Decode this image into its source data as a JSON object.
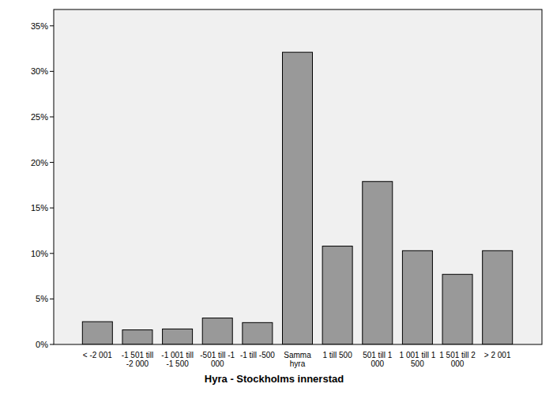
{
  "chart_data": {
    "type": "bar",
    "x_label": "Hyra - Stockholms innerstad",
    "categories": [
      "< -2 001",
      "-1 501 till -2 000",
      "-1 001 till -1 500",
      "-501 till -1 000",
      "-1 till -500",
      "Samma hyra",
      "1 till 500",
      "501 till 1 000",
      "1 001 till 1 500",
      "1 501 till 2 000",
      "> 2 001"
    ],
    "values": [
      2.5,
      1.6,
      1.7,
      2.9,
      2.4,
      32.1,
      10.8,
      17.9,
      10.3,
      7.7,
      10.3
    ],
    "color": "#999999",
    "ylim": [
      0,
      36.8
    ],
    "yticks": [
      {
        "value": 0,
        "label": "0%"
      },
      {
        "value": 5,
        "label": "5%"
      },
      {
        "value": 10,
        "label": "10%"
      },
      {
        "value": 15,
        "label": "15%"
      },
      {
        "value": 20,
        "label": "20%"
      },
      {
        "value": 25,
        "label": "25%"
      },
      {
        "value": 30,
        "label": "30%"
      },
      {
        "value": 35,
        "label": "35%"
      }
    ],
    "grid": false
  }
}
